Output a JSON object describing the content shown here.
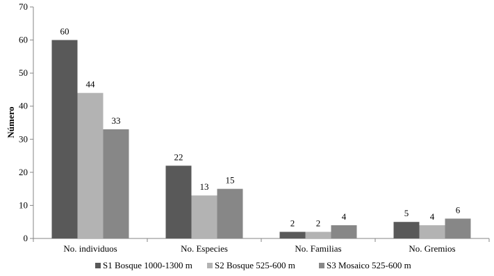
{
  "chart_data": {
    "type": "bar",
    "ylabel": "Número",
    "xlabel": "",
    "ylim": [
      0,
      70
    ],
    "yticks": [
      0,
      10,
      20,
      30,
      40,
      50,
      60,
      70
    ],
    "grid": false,
    "legend_position": "bottom",
    "categories": [
      "No. individuos",
      "No. Especies",
      "No. Familias",
      "No. Gremios"
    ],
    "series": [
      {
        "name": "S1 Bosque 1000-1300 m",
        "color": "#595959",
        "values": [
          60,
          22,
          2,
          5
        ]
      },
      {
        "name": "S2 Bosque 525-600 m",
        "color": "#b3b3b3",
        "values": [
          44,
          13,
          2,
          4
        ]
      },
      {
        "name": "S3 Mosaico 525-600 m",
        "color": "#878787",
        "values": [
          33,
          15,
          4,
          6
        ]
      }
    ]
  }
}
